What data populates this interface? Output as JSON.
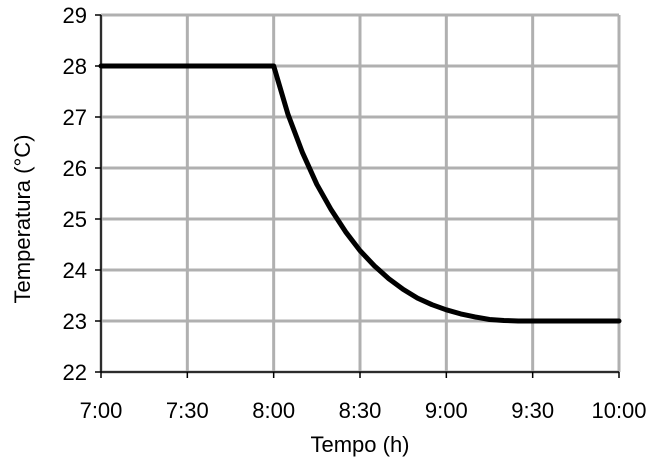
{
  "chart_data": {
    "type": "line",
    "title": "",
    "xlabel": "Tempo (h)",
    "ylabel": "Temperatura (°C)",
    "x_ticks": [
      "7:00",
      "7:30",
      "8:00",
      "8:30",
      "9:00",
      "9:30",
      "10:00"
    ],
    "x_tick_values": [
      7.0,
      7.5,
      8.0,
      8.5,
      9.0,
      9.5,
      10.0
    ],
    "y_ticks": [
      "22",
      "23",
      "24",
      "25",
      "26",
      "27",
      "28",
      "29"
    ],
    "xlim": [
      7.0,
      10.0
    ],
    "ylim": [
      22,
      29
    ],
    "grid": true,
    "colors": {
      "line": "#000000",
      "grid": "#b0b0b0",
      "axis": "#000000"
    },
    "series": [
      {
        "x": [
          7.0,
          8.0,
          8.0833,
          8.1667,
          8.25,
          8.3333,
          8.4167,
          8.5,
          8.5833,
          8.6667,
          8.75,
          8.8333,
          8.9167,
          9.0,
          9.0833,
          9.1667,
          9.25,
          9.3333,
          9.4167,
          9.5,
          10.0
        ],
        "y": [
          28.0,
          28.0,
          27.05,
          26.3,
          25.68,
          25.18,
          24.75,
          24.38,
          24.08,
          23.83,
          23.62,
          23.45,
          23.32,
          23.22,
          23.14,
          23.08,
          23.03,
          23.01,
          23.0,
          23.0,
          23.0
        ]
      }
    ]
  }
}
